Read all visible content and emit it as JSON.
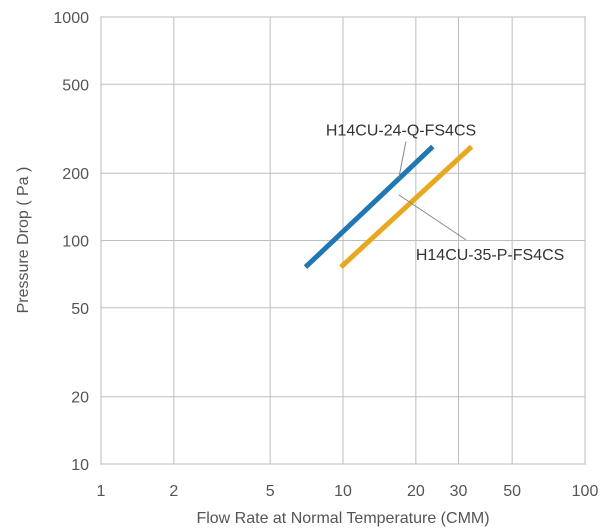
{
  "chart_data": {
    "type": "line",
    "title": "",
    "xlabel": "Flow Rate at Normal Temperature  (CMM)",
    "ylabel": "Pressure Drop ( Pa )",
    "xscale": "log",
    "yscale": "log",
    "xlim": [
      1,
      100
    ],
    "ylim": [
      10,
      1000
    ],
    "grid": true,
    "legend": "none",
    "xticks": [
      1,
      2,
      5,
      10,
      20,
      30,
      50,
      100
    ],
    "yticks": [
      10,
      20,
      50,
      100,
      200,
      500,
      1000
    ],
    "series": [
      {
        "name": "H14CU-24-Q-FS4CS",
        "color": "#1f77b4",
        "x": [
          7,
          23.5
        ],
        "y": [
          76,
          263
        ]
      },
      {
        "name": "H14CU-35-P-FS4CS",
        "color": "#e8a820",
        "x": [
          9.8,
          34
        ],
        "y": [
          76,
          263
        ]
      }
    ],
    "annotations": [
      {
        "series": 0,
        "text": "H14CU-24-Q-FS4CS",
        "text_at": [
          8.5,
          295
        ],
        "point": [
          17,
          190
        ]
      },
      {
        "series": 1,
        "text": "H14CU-35-P-FS4CS",
        "text_at": [
          20,
          82
        ],
        "point": [
          17,
          160
        ]
      }
    ]
  }
}
